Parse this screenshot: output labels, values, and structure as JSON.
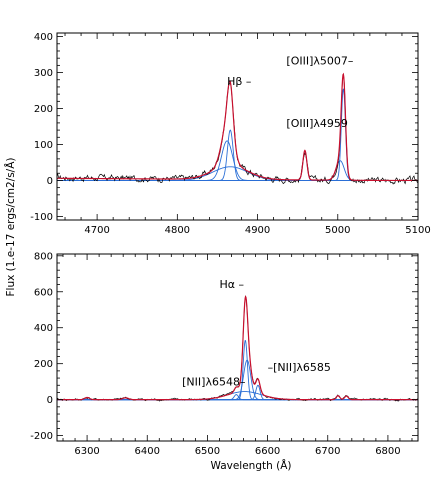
{
  "chart_data": [
    {
      "type": "line",
      "panel": "top",
      "xlim": [
        4650,
        5100
      ],
      "ylim": [
        -110,
        410
      ],
      "x_ticks": [
        4700,
        4800,
        4900,
        5000,
        5100
      ],
      "y_ticks": [
        -100,
        0,
        100,
        200,
        300,
        400
      ],
      "x_tick_labels": [
        "4700",
        "4800",
        "4900",
        "5000",
        "5100"
      ],
      "y_tick_labels": [
        "-100",
        "0",
        "100",
        "200",
        "300",
        "400"
      ],
      "grid": false,
      "components": {
        "broad": [
          {
            "center": 4866,
            "amp": 38,
            "sigma": 22
          }
        ],
        "narrow": [
          {
            "center": 4862,
            "amp": 110,
            "sigma": 7
          },
          {
            "center": 4866,
            "amp": 140,
            "sigma": 3.6
          },
          {
            "center": 4959,
            "amp": 82,
            "sigma": 2.5
          },
          {
            "center": 5007,
            "amp": 255,
            "sigma": 2.6
          },
          {
            "center": 5003,
            "amp": 55,
            "sigma": 5
          }
        ]
      },
      "annotations": [
        {
          "text": "Hβ –",
          "x": 4862,
          "y": 265
        },
        {
          "text": "[OIII]λ5007–",
          "x": 4936,
          "y": 322
        },
        {
          "text": "[OIII]λ4959",
          "x": 4936,
          "y": 148
        }
      ]
    },
    {
      "type": "line",
      "panel": "bottom",
      "xlim": [
        4250,
        6850
      ],
      "ylim": [
        -230,
        810
      ],
      "x_ticks": [
        6300,
        6400,
        6500,
        6600,
        6700,
        6800
      ],
      "y_ticks": [
        -200,
        0,
        200,
        400,
        600,
        800
      ],
      "x_tick_labels": [
        "6300",
        "6400",
        "6500",
        "6600",
        "6700",
        "6800"
      ],
      "y_tick_labels": [
        "-200",
        "0",
        "200",
        "400",
        "600",
        "800"
      ],
      "grid": false,
      "components": {
        "broad": [
          {
            "center": 6562,
            "amp": 45,
            "sigma": 28
          }
        ],
        "narrow": [
          {
            "center": 6563,
            "amp": 330,
            "sigma": 3.5
          },
          {
            "center": 6566,
            "amp": 220,
            "sigma": 6
          },
          {
            "center": 6584,
            "amp": 80,
            "sigma": 3.5
          },
          {
            "center": 6548,
            "amp": 28,
            "sigma": 3.5
          },
          {
            "center": 6300,
            "amp": 12,
            "sigma": 4
          },
          {
            "center": 6364,
            "amp": 10,
            "sigma": 5
          },
          {
            "center": 6717,
            "amp": 22,
            "sigma": 3
          },
          {
            "center": 6731,
            "amp": 20,
            "sigma": 3
          }
        ]
      },
      "annotations": [
        {
          "text": "Hα –",
          "x": 6520,
          "y": 620
        },
        {
          "text": "–[NII]λ6585",
          "x": 6600,
          "y": 160
        },
        {
          "text": "[NII]λ6548–",
          "x": 6458,
          "y": 80
        }
      ]
    }
  ],
  "shared": {
    "xlabel": "Wavelength (Å)",
    "ylabel": "Flux (1.e-17 ergs/cm2/s/Å)"
  },
  "colors": {
    "data": "#000000",
    "total_fit": "#c8102e",
    "components": "#2b6fd6"
  }
}
